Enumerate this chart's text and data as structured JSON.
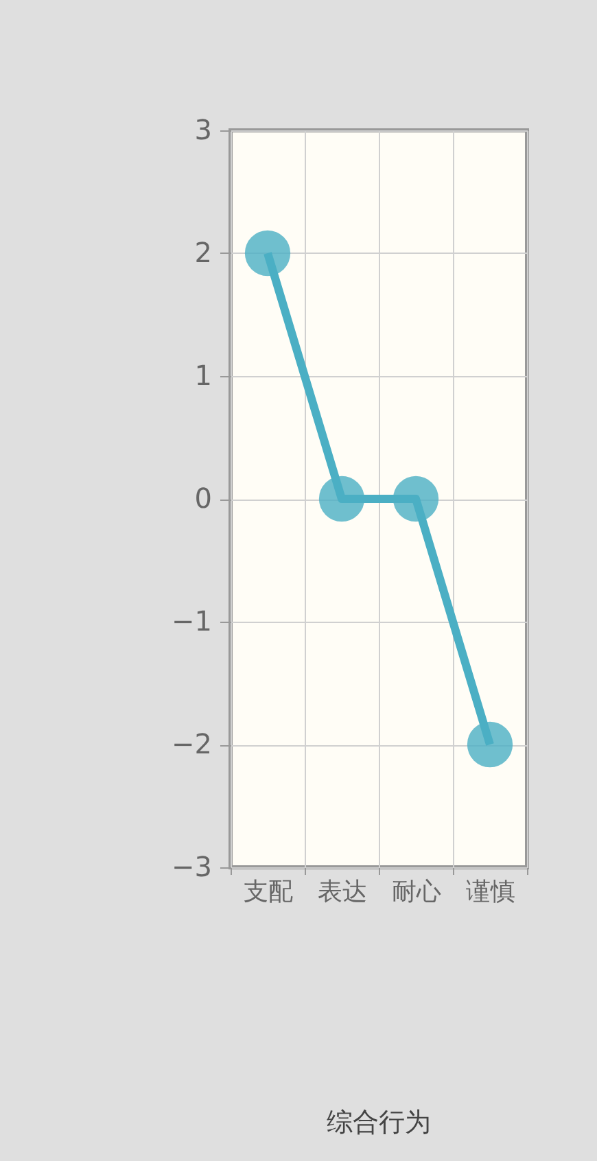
{
  "chart_data": {
    "type": "line",
    "title": "综合行为",
    "categories": [
      "支配",
      "表达",
      "耐心",
      "谨慎"
    ],
    "series": [
      {
        "color": "#4bafc4",
        "values": [
          2,
          0,
          0,
          -2
        ]
      }
    ],
    "ylim": [
      -3,
      3
    ],
    "yticks": [
      -3,
      -2,
      -1,
      0,
      1,
      2,
      3
    ],
    "grid": true,
    "marker": "circle"
  }
}
